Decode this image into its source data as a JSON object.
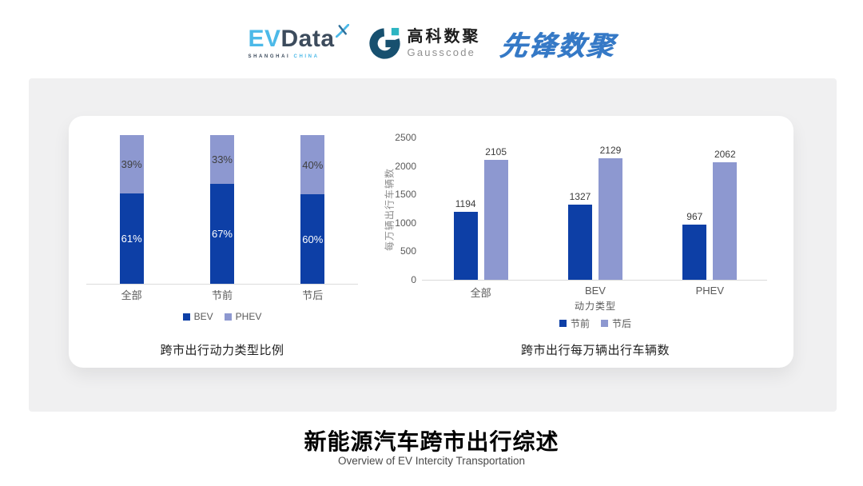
{
  "header": {
    "evdata_logo": {
      "ev": "EV",
      "data": "Data",
      "sub_dark": "SHANGHAI ",
      "sub_blue": "CHINA"
    },
    "gausscode_logo": {
      "name_cn": "高科数聚",
      "name_en": "Gausscode"
    },
    "pioneer_logo": {
      "text": "先锋数聚"
    }
  },
  "chart_data": [
    {
      "type": "bar",
      "variant": "stacked-percent",
      "title": "跨市出行动力类型比例",
      "categories": [
        "全部",
        "节前",
        "节后"
      ],
      "series": [
        {
          "name": "BEV",
          "values": [
            61,
            67,
            60
          ],
          "color": "#0d3fa6",
          "label_suffix": "%",
          "label_color": "#ffffff"
        },
        {
          "name": "PHEV",
          "values": [
            39,
            33,
            40
          ],
          "color": "#8d98d0",
          "label_suffix": "%",
          "label_color": "#3f3f3f"
        }
      ],
      "legend": [
        "BEV",
        "PHEV"
      ],
      "legend_position": "bottom",
      "grid": false,
      "ylim": [
        0,
        100
      ]
    },
    {
      "type": "bar",
      "variant": "grouped",
      "title": "跨市出行每万辆出行车辆数",
      "xlabel": "动力类型",
      "ylabel": "每万辆出行车辆数",
      "categories": [
        "全部",
        "BEV",
        "PHEV"
      ],
      "series": [
        {
          "name": "节前",
          "values": [
            1194,
            1327,
            967
          ],
          "color": "#0d3fa6"
        },
        {
          "name": "节后",
          "values": [
            2105,
            2129,
            2062
          ],
          "color": "#8d98d0"
        }
      ],
      "legend": [
        "节前",
        "节后"
      ],
      "legend_position": "bottom",
      "grid": false,
      "ylim": [
        0,
        2500
      ],
      "yticks": [
        0,
        500,
        1000,
        1500,
        2000,
        2500
      ]
    }
  ],
  "footer": {
    "title": "新能源汽车跨市出行综述",
    "subtitle": "Overview of EV Intercity Transportation"
  },
  "colors": {
    "series_dark_blue": "#0d3fa6",
    "series_light_blue": "#8d98d0",
    "panel_gray": "#f0f0f1",
    "card_white": "#ffffff",
    "axis_gray": "#d9d9d9",
    "tick_text_gray": "#595959",
    "evdata_light_blue": "#4cb9e8",
    "evdata_dark_slate": "#3c4b5c",
    "gauss_navy": "#17506f",
    "gauss_teal": "#2cb5c2",
    "pioneer_blue": "#3579c6"
  }
}
